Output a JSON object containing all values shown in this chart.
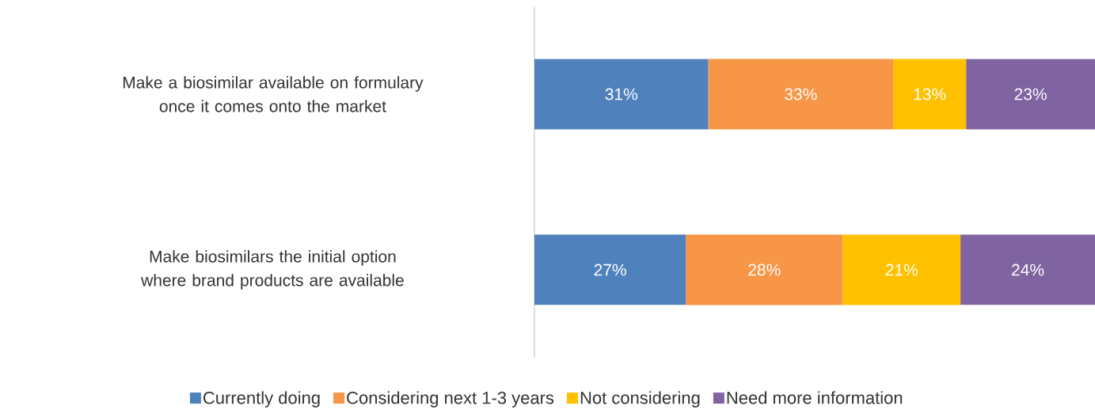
{
  "chart_data": {
    "type": "bar",
    "orientation": "horizontal",
    "stacked": true,
    "categories": [
      "Make a biosimilar available on formulary once it comes onto the market",
      "Make biosimilars the initial option where brand products are available"
    ],
    "xlim": [
      0,
      100
    ],
    "tick_labels": "y",
    "legend": "bottom",
    "series": [
      {
        "name": "Currently doing",
        "color": "#4f81bd",
        "values": [
          31,
          27
        ],
        "value_labels": [
          "31%",
          "27%"
        ]
      },
      {
        "name": "Considering next 1-3 years",
        "color": "#f79646",
        "values": [
          33,
          28
        ],
        "value_labels": [
          "33%",
          "28%"
        ]
      },
      {
        "name": "Not considering",
        "color": "#ffc000",
        "values": [
          13,
          21
        ],
        "value_labels": [
          "13%",
          "21%"
        ]
      },
      {
        "name": "Need more information",
        "color": "#8064a2",
        "values": [
          23,
          24
        ],
        "value_labels": [
          "23%",
          "24%"
        ]
      }
    ]
  }
}
